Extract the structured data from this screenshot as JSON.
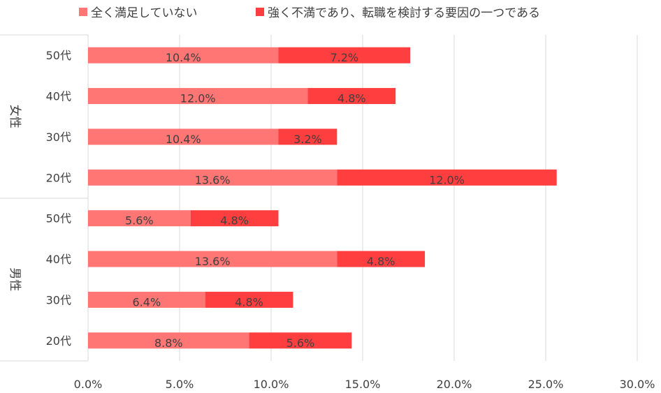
{
  "chart_data": {
    "type": "bar",
    "orientation": "horizontal",
    "stacked": true,
    "groups": [
      {
        "label": "女性",
        "categories": [
          "50代",
          "40代",
          "30代",
          "20代"
        ]
      },
      {
        "label": "男性",
        "categories": [
          "50代",
          "40代",
          "30代",
          "20代"
        ]
      }
    ],
    "series": [
      {
        "name": "全く満足していない",
        "color": "#FF7674",
        "values": [
          10.4,
          12.0,
          10.4,
          13.6,
          5.6,
          13.6,
          6.4,
          8.8
        ]
      },
      {
        "name": "強く不満であり、転職を検討する要因の一つである",
        "color": "#FF3F3F",
        "values": [
          7.2,
          4.8,
          3.2,
          12.0,
          4.8,
          4.8,
          4.8,
          5.6
        ]
      }
    ],
    "xlim": [
      0,
      30
    ],
    "xticks": [
      "0.0%",
      "5.0%",
      "10.0%",
      "15.0%",
      "20.0%",
      "25.0%",
      "30.0%"
    ],
    "xtick_values": [
      0,
      5,
      10,
      15,
      20,
      25,
      30
    ],
    "value_format": "percent-1dp",
    "grid": "vertical",
    "legend": "top"
  }
}
